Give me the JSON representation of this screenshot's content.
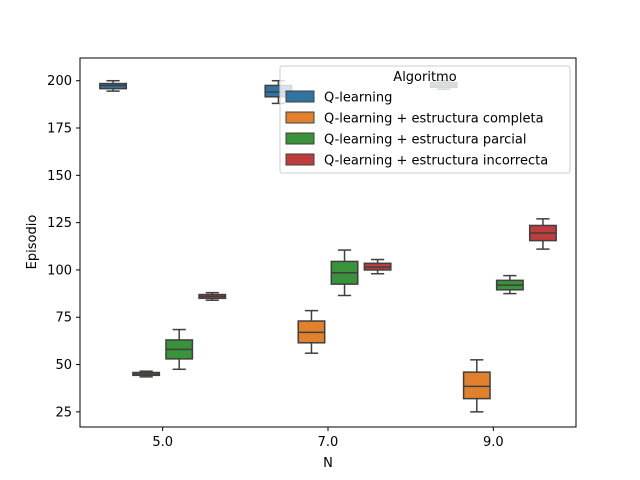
{
  "chart_data": {
    "type": "box",
    "xlabel": "N",
    "ylabel": "Episodio",
    "categories": [
      "5.0",
      "7.0",
      "9.0"
    ],
    "ylim": [
      17,
      212
    ],
    "yticks": [
      25,
      50,
      75,
      100,
      125,
      150,
      175,
      200
    ],
    "grid": false,
    "legend": {
      "title": "Algoritmo",
      "placement": "top-right"
    },
    "series": [
      {
        "name": "Q-learning",
        "color": "#3274a1",
        "boxes": [
          {
            "category": "5.0",
            "whisker_low": 194.5,
            "q1": 195.8,
            "median": 197.5,
            "q3": 198.5,
            "whisker_high": 200
          },
          {
            "category": "7.0",
            "whisker_low": 188,
            "q1": 191.5,
            "median": 194,
            "q3": 197.5,
            "whisker_high": 200
          },
          {
            "category": "9.0",
            "whisker_low": 195.5,
            "q1": 196.5,
            "median": 197.5,
            "q3": 199,
            "whisker_high": 200
          }
        ]
      },
      {
        "name": "Q-learning + estructura completa",
        "color": "#e1812c",
        "boxes": [
          {
            "category": "5.0",
            "whisker_low": 43.5,
            "q1": 44.3,
            "median": 45,
            "q3": 45.8,
            "whisker_high": 46.5
          },
          {
            "category": "7.0",
            "whisker_low": 56,
            "q1": 61.5,
            "median": 67,
            "q3": 73,
            "whisker_high": 78.5
          },
          {
            "category": "9.0",
            "whisker_low": 25,
            "q1": 32,
            "median": 38.5,
            "q3": 46,
            "whisker_high": 52.5
          }
        ]
      },
      {
        "name": "Q-learning + estructura parcial",
        "color": "#3a923a",
        "boxes": [
          {
            "category": "5.0",
            "whisker_low": 47.5,
            "q1": 53,
            "median": 58,
            "q3": 63,
            "whisker_high": 68.5
          },
          {
            "category": "7.0",
            "whisker_low": 86.5,
            "q1": 92.5,
            "median": 98.5,
            "q3": 104.5,
            "whisker_high": 110.5
          },
          {
            "category": "9.0",
            "whisker_low": 87.5,
            "q1": 89.5,
            "median": 92,
            "q3": 94.5,
            "whisker_high": 97
          }
        ]
      },
      {
        "name": "Q-learning + estructura incorrecta",
        "color": "#c03d3e",
        "boxes": [
          {
            "category": "5.0",
            "whisker_low": 84,
            "q1": 85,
            "median": 86,
            "q3": 87,
            "whisker_high": 88
          },
          {
            "category": "7.0",
            "whisker_low": 98,
            "q1": 100,
            "median": 101.5,
            "q3": 103.5,
            "whisker_high": 105.5
          },
          {
            "category": "9.0",
            "whisker_low": 111,
            "q1": 115.5,
            "median": 119.5,
            "q3": 123.5,
            "whisker_high": 127
          }
        ]
      }
    ]
  }
}
